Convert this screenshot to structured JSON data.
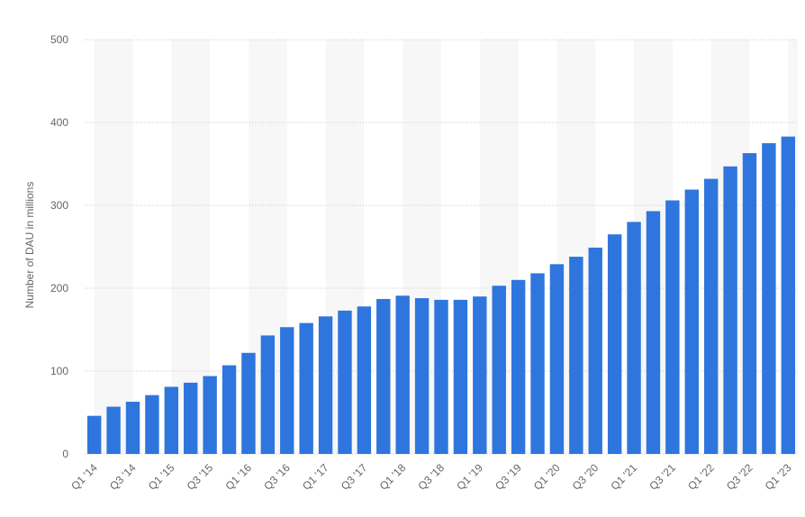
{
  "chart_data": {
    "type": "bar",
    "y_label": "Number of DAU in millions",
    "categories": [
      "Q1 '14",
      null,
      "Q3 '14",
      null,
      "Q1 '15",
      null,
      "Q3 '15",
      null,
      "Q1 '16",
      null,
      "Q3 '16",
      null,
      "Q1 '17",
      null,
      "Q3 '17",
      null,
      "Q1 '18",
      null,
      "Q3 '18",
      null,
      "Q1 '19",
      null,
      "Q3 '19",
      null,
      "Q1 '20",
      null,
      "Q3 '20",
      null,
      "Q1 '21",
      null,
      "Q3 '21",
      null,
      "Q1 '22",
      null,
      "Q3 '22",
      null,
      "Q1 '23"
    ],
    "values": [
      46,
      57,
      63,
      71,
      81,
      86,
      94,
      107,
      122,
      143,
      153,
      158,
      166,
      173,
      178,
      187,
      191,
      188,
      186,
      186,
      190,
      203,
      210,
      218,
      229,
      238,
      249,
      265,
      280,
      293,
      306,
      319,
      332,
      347,
      363,
      375,
      383
    ],
    "color": "#2e76de",
    "ylim": [
      0,
      500
    ],
    "yticks": [
      0,
      100,
      200,
      300,
      400,
      500
    ],
    "grid": true
  }
}
